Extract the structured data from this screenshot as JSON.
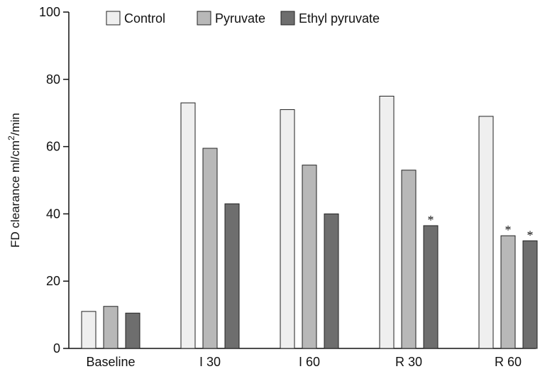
{
  "chart_data": {
    "type": "bar",
    "categories": [
      "Baseline",
      "I 30",
      "I 60",
      "R 30",
      "R 60"
    ],
    "series": [
      {
        "name": "Control",
        "color": "#efefef",
        "values": [
          11,
          73,
          71,
          75,
          69
        ]
      },
      {
        "name": "Pyruvate",
        "color": "#b8b8b8",
        "values": [
          12.5,
          59.5,
          54.5,
          53,
          33.5
        ]
      },
      {
        "name": "Ethyl pyruvate",
        "color": "#6e6e6e",
        "values": [
          10.5,
          43,
          40,
          36.5,
          32
        ]
      }
    ],
    "significance": [
      {
        "series": 2,
        "category": 3,
        "mark": "*"
      },
      {
        "series": 1,
        "category": 4,
        "mark": "*"
      },
      {
        "series": 2,
        "category": 4,
        "mark": "*"
      }
    ],
    "ylabel_main": "FD clearance ml/cm",
    "ylabel_sup": "2",
    "ylabel_tail": "/min",
    "xlabel": "",
    "ylim": [
      0,
      100
    ],
    "yticks": [
      0,
      20,
      40,
      60,
      80,
      100
    ],
    "grid": false,
    "legend_position": "top"
  }
}
